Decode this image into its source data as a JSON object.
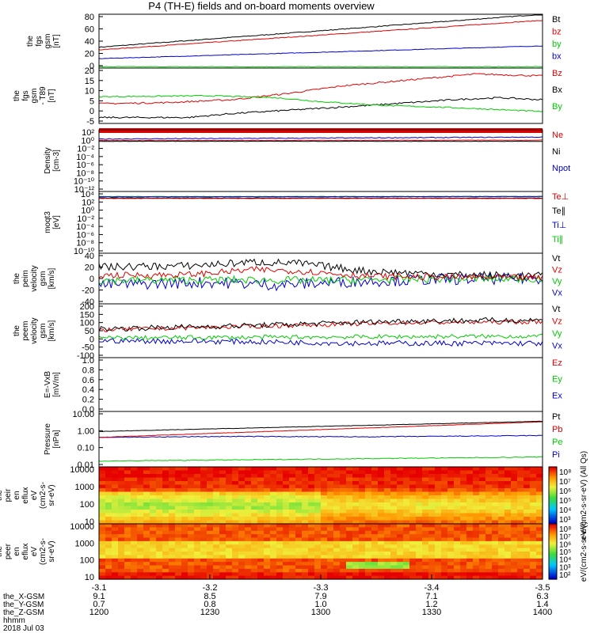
{
  "title": "P4 (TH-E) fields and on-board moments overview",
  "colors": {
    "black": "#000000",
    "red": "#e00000",
    "green": "#00cc00",
    "blue": "#0000cc"
  },
  "chart_data": {
    "type": "line",
    "panels": [
      {
        "id": "fgs-gsm",
        "ylabel": [
          "the",
          "fgs",
          "gsm",
          "[nT]"
        ],
        "scale": "linear",
        "ylim": [
          0,
          80
        ],
        "ticks": [
          "80",
          "60",
          "40",
          "20",
          "0"
        ],
        "legend": [
          {
            "label": "Bt",
            "color": "black"
          },
          {
            "label": "bz",
            "color": "red"
          },
          {
            "label": "by",
            "color": "green"
          },
          {
            "label": "bx",
            "color": "blue"
          }
        ],
        "series": [
          {
            "name": "Bt",
            "color": "black",
            "start": 31,
            "end": 80,
            "noise": 0.6
          },
          {
            "name": "Bz",
            "color": "red",
            "start": 27,
            "end": 71,
            "noise": 0.5
          },
          {
            "name": "By",
            "color": "green",
            "start": 2,
            "end": 2,
            "noise": 0.4
          },
          {
            "name": "Bx",
            "color": "blue",
            "start": 14,
            "end": 33,
            "noise": 0.4
          }
        ]
      },
      {
        "id": "fgs-gsm-t89",
        "ylabel": [
          "the",
          "fgs",
          "gsm",
          "- T89",
          "[nT]"
        ],
        "scale": "linear",
        "ylim": [
          -7,
          21
        ],
        "ticks": [
          "20",
          "15",
          "10",
          "5",
          "0",
          "-5"
        ],
        "legend": [
          {
            "label": "Bz",
            "color": "red"
          },
          {
            "label": "Bx",
            "color": "black"
          },
          {
            "label": "By",
            "color": "green"
          }
        ],
        "series": [
          {
            "name": "Bz",
            "color": "red",
            "points": [
              [
                0,
                3
              ],
              [
                0.15,
                3.5
              ],
              [
                0.3,
                5
              ],
              [
                0.42,
                8
              ],
              [
                0.55,
                12
              ],
              [
                0.7,
                15
              ],
              [
                0.85,
                18
              ],
              [
                1,
                17
              ]
            ],
            "noise": 0.4
          },
          {
            "name": "Bx",
            "color": "black",
            "points": [
              [
                0,
                -4
              ],
              [
                0.2,
                -4
              ],
              [
                0.3,
                -2
              ],
              [
                0.45,
                0
              ],
              [
                0.6,
                2
              ],
              [
                0.8,
                5
              ],
              [
                0.9,
                6
              ],
              [
                1,
                5
              ]
            ],
            "noise": 0.4
          },
          {
            "name": "By",
            "color": "green",
            "points": [
              [
                0,
                6.5
              ],
              [
                0.25,
                7
              ],
              [
                0.4,
                6
              ],
              [
                0.5,
                4
              ],
              [
                0.65,
                2
              ],
              [
                0.8,
                1
              ],
              [
                1,
                -1
              ]
            ],
            "noise": 0.3
          }
        ]
      },
      {
        "id": "density",
        "ylabel": [
          "Density",
          "[cm-3]"
        ],
        "scale": "log",
        "ylim": [
          -13,
          3
        ],
        "ticks": [
          "10²",
          "10⁰",
          "10⁻²",
          "10⁻⁴",
          "10⁻⁶",
          "10⁻⁸",
          "10⁻¹⁰",
          "10⁻¹²"
        ],
        "legend": [
          {
            "label": "Ne",
            "color": "red"
          },
          {
            "label": "Ni",
            "color": "black"
          },
          {
            "label": "Npot",
            "color": "blue"
          }
        ],
        "series": [
          {
            "name": "Npot",
            "color": "blue",
            "start": 0.6,
            "end": 1.1,
            "noise": 0.1
          },
          {
            "name": "Ne",
            "color": "red",
            "start": 0.2,
            "end": 0.3,
            "noise": 0.05
          },
          {
            "name": "Ni",
            "color": "black",
            "start": 0,
            "end": 0,
            "noise": 0.05
          }
        ]
      },
      {
        "id": "moms-temp",
        "ylabel": [
          "moqt3",
          "[eV]"
        ],
        "scale": "log",
        "ylim": [
          -11,
          5
        ],
        "ticks": [
          "10⁴",
          "10²",
          "10⁰",
          "10⁻²",
          "10⁻⁴",
          "10⁻⁶",
          "10⁻⁸",
          "10⁻¹⁰"
        ],
        "legend": [
          {
            "label": "Te⊥",
            "color": "red"
          },
          {
            "label": "Te∥",
            "color": "black"
          },
          {
            "label": "Ti⊥",
            "color": "blue"
          },
          {
            "label": "Ti∥",
            "color": "green"
          }
        ],
        "series": [
          {
            "name": "Ti∥",
            "color": "green",
            "start": 3.7,
            "end": 3.7,
            "noise": 0.05
          },
          {
            "name": "Ti⊥",
            "color": "blue",
            "start": 3.6,
            "end": 3.7,
            "noise": 0.05
          },
          {
            "name": "Te∥",
            "color": "black",
            "start": 3.3,
            "end": 3.3,
            "noise": 0.05
          },
          {
            "name": "Te⊥",
            "color": "red",
            "start": 3.2,
            "end": 3.2,
            "noise": 0.05
          }
        ]
      },
      {
        "id": "peim-velocity",
        "ylabel": [
          "the",
          "peim",
          "velocity",
          "gsm",
          "[km/s]"
        ],
        "scale": "linear",
        "ylim": [
          -40,
          40
        ],
        "ticks": [
          "40",
          "20",
          "0",
          "-20",
          "-40"
        ],
        "legend": [
          {
            "label": "Vt",
            "color": "black"
          },
          {
            "label": "Vz",
            "color": "red"
          },
          {
            "label": "Vy",
            "color": "green"
          },
          {
            "label": "Vx",
            "color": "blue"
          }
        ],
        "series": [
          {
            "name": "Vx",
            "color": "blue",
            "points": [
              [
                0,
                -10
              ],
              [
                0.25,
                -6
              ],
              [
                0.4,
                -10
              ],
              [
                0.6,
                -4
              ],
              [
                0.8,
                -1
              ],
              [
                1,
                0
              ]
            ],
            "noise": 9
          },
          {
            "name": "Vy",
            "color": "green",
            "points": [
              [
                0,
                -3
              ],
              [
                0.3,
                -2
              ],
              [
                0.5,
                -3
              ],
              [
                0.7,
                -1
              ],
              [
                1,
                0
              ]
            ],
            "noise": 6
          },
          {
            "name": "Vt",
            "color": "black",
            "points": [
              [
                0,
                18
              ],
              [
                0.2,
                20
              ],
              [
                0.35,
                26
              ],
              [
                0.45,
                24
              ],
              [
                0.6,
                12
              ],
              [
                0.8,
                6
              ],
              [
                1,
                4
              ]
            ],
            "noise": 6
          },
          {
            "name": "Vz",
            "color": "red",
            "points": [
              [
                0,
                5
              ],
              [
                0.2,
                6
              ],
              [
                0.35,
                14
              ],
              [
                0.45,
                12
              ],
              [
                0.6,
                4
              ],
              [
                0.8,
                2
              ],
              [
                1,
                1
              ]
            ],
            "noise": 5
          }
        ]
      },
      {
        "id": "peem-velocity",
        "ylabel": [
          "the",
          "peem",
          "velocity",
          "gsm",
          "[km/s]"
        ],
        "scale": "linear",
        "ylim": [
          -100,
          200
        ],
        "ticks": [
          "200",
          "150",
          "100",
          "50",
          "0",
          "-50",
          "-100"
        ],
        "legend": [
          {
            "label": "Vt",
            "color": "black"
          },
          {
            "label": "Vz",
            "color": "red"
          },
          {
            "label": "Vy",
            "color": "green"
          },
          {
            "label": "Vx",
            "color": "blue"
          }
        ],
        "series": [
          {
            "name": "Vx",
            "color": "blue",
            "points": [
              [
                0,
                -5
              ],
              [
                0.3,
                -10
              ],
              [
                0.6,
                -20
              ],
              [
                0.8,
                -20
              ],
              [
                1,
                -20
              ]
            ],
            "noise": 15
          },
          {
            "name": "Vy",
            "color": "green",
            "points": [
              [
                0,
                10
              ],
              [
                0.5,
                15
              ],
              [
                1,
                20
              ]
            ],
            "noise": 12
          },
          {
            "name": "Vz",
            "color": "red",
            "points": [
              [
                0,
                55
              ],
              [
                0.35,
                75
              ],
              [
                0.7,
                95
              ],
              [
                1,
                100
              ]
            ],
            "noise": 12
          },
          {
            "name": "Vt",
            "color": "black",
            "points": [
              [
                0,
                60
              ],
              [
                0.35,
                80
              ],
              [
                0.7,
                105
              ],
              [
                1,
                110
              ]
            ],
            "noise": 15
          }
        ]
      },
      {
        "id": "efield",
        "ylabel": [
          "E=-VxB",
          "[mV/m]"
        ],
        "scale": "linear",
        "ylim": [
          0,
          1
        ],
        "ticks": [
          "1.0",
          "0.8",
          "0.6",
          "0.4",
          "0.2",
          "0.0"
        ],
        "legend": [
          {
            "label": "Ez",
            "color": "red"
          },
          {
            "label": "Ey",
            "color": "green"
          },
          {
            "label": "Ex",
            "color": "blue"
          }
        ],
        "series": []
      },
      {
        "id": "pressure",
        "ylabel": [
          "Pressure",
          "[nPa]"
        ],
        "scale": "log",
        "ylim": [
          -2.1,
          1
        ],
        "ticks": [
          "10.00",
          "1.00",
          "0.10",
          "0.01"
        ],
        "legend": [
          {
            "label": "Pt",
            "color": "black"
          },
          {
            "label": "Pb",
            "color": "red"
          },
          {
            "label": "Pe",
            "color": "green"
          },
          {
            "label": "Pi",
            "color": "blue"
          }
        ],
        "series": [
          {
            "name": "Pe",
            "color": "green",
            "start": -1.78,
            "end": -1.55,
            "noise": 0.02
          },
          {
            "name": "Pi",
            "color": "blue",
            "points": [
              [
                0,
                -0.45
              ],
              [
                0.3,
                -0.4
              ],
              [
                0.6,
                -0.42
              ],
              [
                1,
                -0.35
              ]
            ],
            "noise": 0.02
          },
          {
            "name": "Pb",
            "color": "red",
            "start": -0.45,
            "end": 0.42,
            "noise": 0.01
          },
          {
            "name": "Pt",
            "color": "black",
            "start": -0.12,
            "end": 0.45,
            "noise": 0.01
          }
        ]
      },
      {
        "id": "peir-spectrogram",
        "type": "heatmap",
        "ylabel": [
          "the",
          "peir",
          "en",
          "eflux",
          "eV",
          "(cm2-s-",
          "sr-eV)"
        ],
        "ticks": [
          "10000",
          "1000",
          "100",
          "10"
        ],
        "ylim_log": [
          0.7,
          4.4
        ],
        "colorbar": {
          "ticks": [
            "10⁸",
            "10⁷",
            "10⁶",
            "10⁵",
            "10⁴",
            "10³"
          ],
          "label": "eV/(cm2-s-sr-eV) (All Qs)"
        }
      },
      {
        "id": "peer-spectrogram",
        "type": "heatmap",
        "ylabel": [
          "the",
          "peer",
          "en",
          "eflux",
          "eV",
          "(cm2-s-",
          "sr-eV)"
        ],
        "ticks": [
          "10000",
          "1000",
          "100",
          "10"
        ],
        "ylim_log": [
          0.7,
          4.4
        ],
        "colorbar": {
          "ticks": [
            "10⁸",
            "10⁷",
            "10⁶",
            "10⁵",
            "10⁴",
            "10³",
            "10²"
          ],
          "label": "eV/(cm2-s-sr-eV)"
        }
      }
    ],
    "xaxis": {
      "ticks": [
        "-3.1",
        "-3.2",
        "-3.3",
        "-3.4",
        "-3.5"
      ],
      "rows": [
        {
          "label": "the_X-GSM",
          "values": [
            "9.1",
            "8.5",
            "7.9",
            "7.1",
            "6.3"
          ]
        },
        {
          "label": "the_Y-GSM",
          "values": [
            "0.7",
            "0.8",
            "1.0",
            "1.2",
            "1.4"
          ]
        },
        {
          "label": "the_Z-GSM",
          "values": [
            "1200",
            "1230",
            "1300",
            "1330",
            "1400"
          ]
        }
      ],
      "hhmm_label": "hhmm",
      "date": "2018 Jul 03"
    }
  }
}
